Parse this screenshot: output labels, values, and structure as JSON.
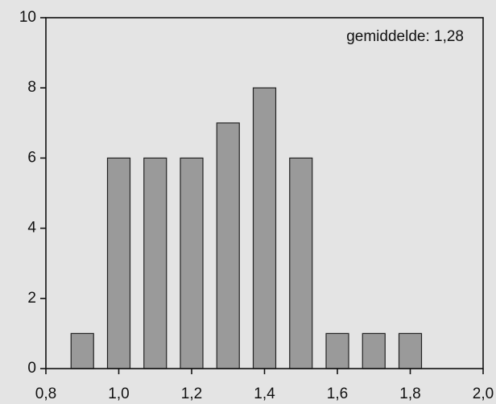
{
  "chart_data": {
    "type": "bar",
    "x": [
      0.9,
      1.0,
      1.1,
      1.2,
      1.3,
      1.4,
      1.5,
      1.6,
      1.7,
      1.8
    ],
    "values": [
      1,
      6,
      6,
      6,
      7,
      8,
      6,
      1,
      1,
      1
    ],
    "color": "#9a9a9a",
    "annotation": "gemiddelde: 1,28",
    "xlim": [
      0.8,
      2.0
    ],
    "xticks": [
      {
        "value": 0.8,
        "label": "0,8"
      },
      {
        "value": 1.0,
        "label": "1,0"
      },
      {
        "value": 1.2,
        "label": "1,2"
      },
      {
        "value": 1.4,
        "label": "1,4"
      },
      {
        "value": 1.6,
        "label": "1,6"
      },
      {
        "value": 1.8,
        "label": "1,8"
      },
      {
        "value": 2.0,
        "label": "2,0"
      }
    ],
    "ylim": [
      0,
      10
    ],
    "yticks": [
      0,
      2,
      4,
      6,
      8,
      10
    ],
    "grid": false
  }
}
